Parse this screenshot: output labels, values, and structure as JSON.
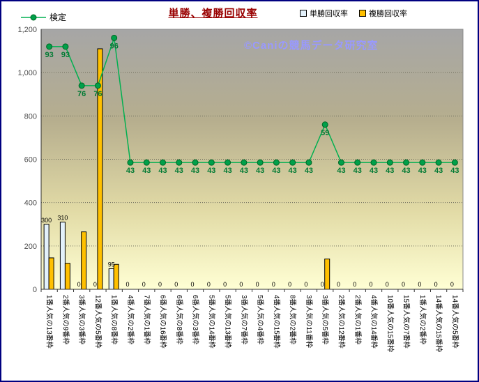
{
  "watermark": "©Caniの競馬データ研究室",
  "colors": {
    "frame_border": "#000080",
    "title": "#990000",
    "watermark": "#9999ff",
    "plot_gradient_top": "#a6a6a6",
    "plot_gradient_bottom": "#ffffd4"
  },
  "chart_data": {
    "type": "bar+line",
    "title": "単勝、複勝回収率",
    "xlabel": "",
    "ylabel": "",
    "ylim": [
      0,
      1200
    ],
    "grid": "horizontal-dotted",
    "legend_position": "top",
    "ytick_values": [
      0,
      200,
      400,
      600,
      800,
      1000,
      1200
    ],
    "ytick_labels": [
      "0",
      "200",
      "400",
      "600",
      "800",
      "1,000",
      "1,200"
    ],
    "categories": [
      "1番人気の13番枠",
      "2番人気の9番枠",
      "3番人気の3番枠",
      "12番人気の5番枠",
      "1番人気の8番枠",
      "4番人気の2番枠",
      "7番人気の1番枠",
      "6番人気の16番枠",
      "6番人気の8番枠",
      "6番人気の3番枠",
      "5番人気の14番枠",
      "5番人気の13番枠",
      "3番人気の7番枠",
      "5番人気の4番枠",
      "4番人気の15番枠",
      "8番人気の2番枠",
      "3番人気の11番枠",
      "3番人気の5番枠",
      "2番人気の12番枠",
      "2番人気の1番枠",
      "4番人気の14番枠",
      "10番人気の15番枠",
      "15番人気の7番枠",
      "1番人気の2番枠",
      "14番人気の15番枠",
      "14番人気の5番枠"
    ],
    "bar_series": [
      {
        "name": "単勝回収率",
        "color": "#e3f1fb",
        "labels_visible": true,
        "values": [
          300,
          310,
          0,
          0,
          95,
          0,
          0,
          0,
          0,
          0,
          0,
          0,
          0,
          0,
          0,
          0,
          0,
          0,
          0,
          0,
          0,
          0,
          0,
          0,
          0,
          0
        ]
      },
      {
        "name": "複勝回収率",
        "color": "#ffc000",
        "labels_visible": false,
        "values": [
          145,
          120,
          265,
          1110,
          115,
          0,
          0,
          0,
          0,
          0,
          0,
          0,
          0,
          0,
          0,
          0,
          0,
          140,
          0,
          0,
          0,
          0,
          0,
          0,
          0,
          0
        ]
      }
    ],
    "line_series": {
      "name": "検定",
      "color": "#00b050",
      "marker_color": "#00a04a",
      "marker_edge": "#006622",
      "label_color": "#007a33",
      "labels": [
        93,
        93,
        76,
        76,
        96,
        43,
        43,
        43,
        43,
        43,
        43,
        43,
        43,
        43,
        43,
        43,
        43,
        59,
        43,
        43,
        43,
        43,
        43,
        43,
        43,
        43
      ],
      "plot_y": [
        1120,
        1120,
        940,
        940,
        1160,
        585,
        585,
        585,
        585,
        585,
        585,
        585,
        585,
        585,
        585,
        585,
        585,
        760,
        585,
        585,
        585,
        585,
        585,
        585,
        585,
        585
      ]
    }
  }
}
